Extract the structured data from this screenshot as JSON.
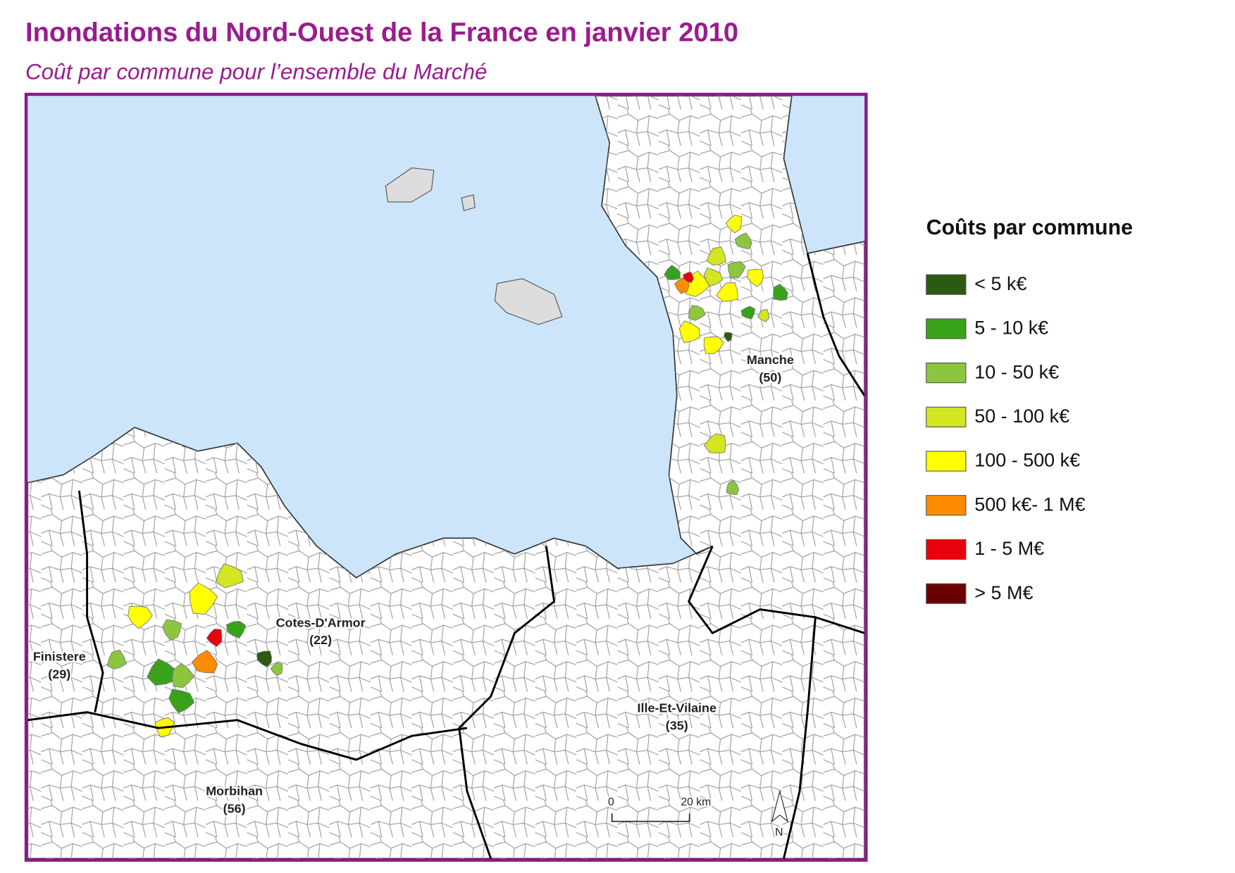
{
  "header": {
    "title": "Inondations du Nord-Ouest de la France en janvier 2010",
    "subtitle": "Coût par commune pour l’ensemble du Marché"
  },
  "legend": {
    "title": "Coûts par commune",
    "items": [
      {
        "label": "< 5 k€",
        "color": "#2c5a10"
      },
      {
        "label": "5 - 10 k€",
        "color": "#38a31a"
      },
      {
        "label": "10 - 50 k€",
        "color": "#8cc63f"
      },
      {
        "label": "50 - 100 k€",
        "color": "#d4e521"
      },
      {
        "label": "100 - 500 k€",
        "color": "#ffff00"
      },
      {
        "label": "500 k€- 1 M€",
        "color": "#ff8c00"
      },
      {
        "label": "1 - 5 M€",
        "color": "#e8000b"
      },
      {
        "label": "> 5 M€",
        "color": "#6b0000"
      }
    ]
  },
  "map": {
    "regions": [
      {
        "name": "Finistere",
        "code": "(29)"
      },
      {
        "name": "Cotes-D'Armor",
        "code": "(22)"
      },
      {
        "name": "Manche",
        "code": "(50)"
      },
      {
        "name": "Ille-Et-Vilaine",
        "code": "(35)"
      },
      {
        "name": "Morbihan",
        "code": "(56)"
      }
    ],
    "scale_bar": {
      "start": "0",
      "end": "20 km"
    },
    "north": "N"
  }
}
